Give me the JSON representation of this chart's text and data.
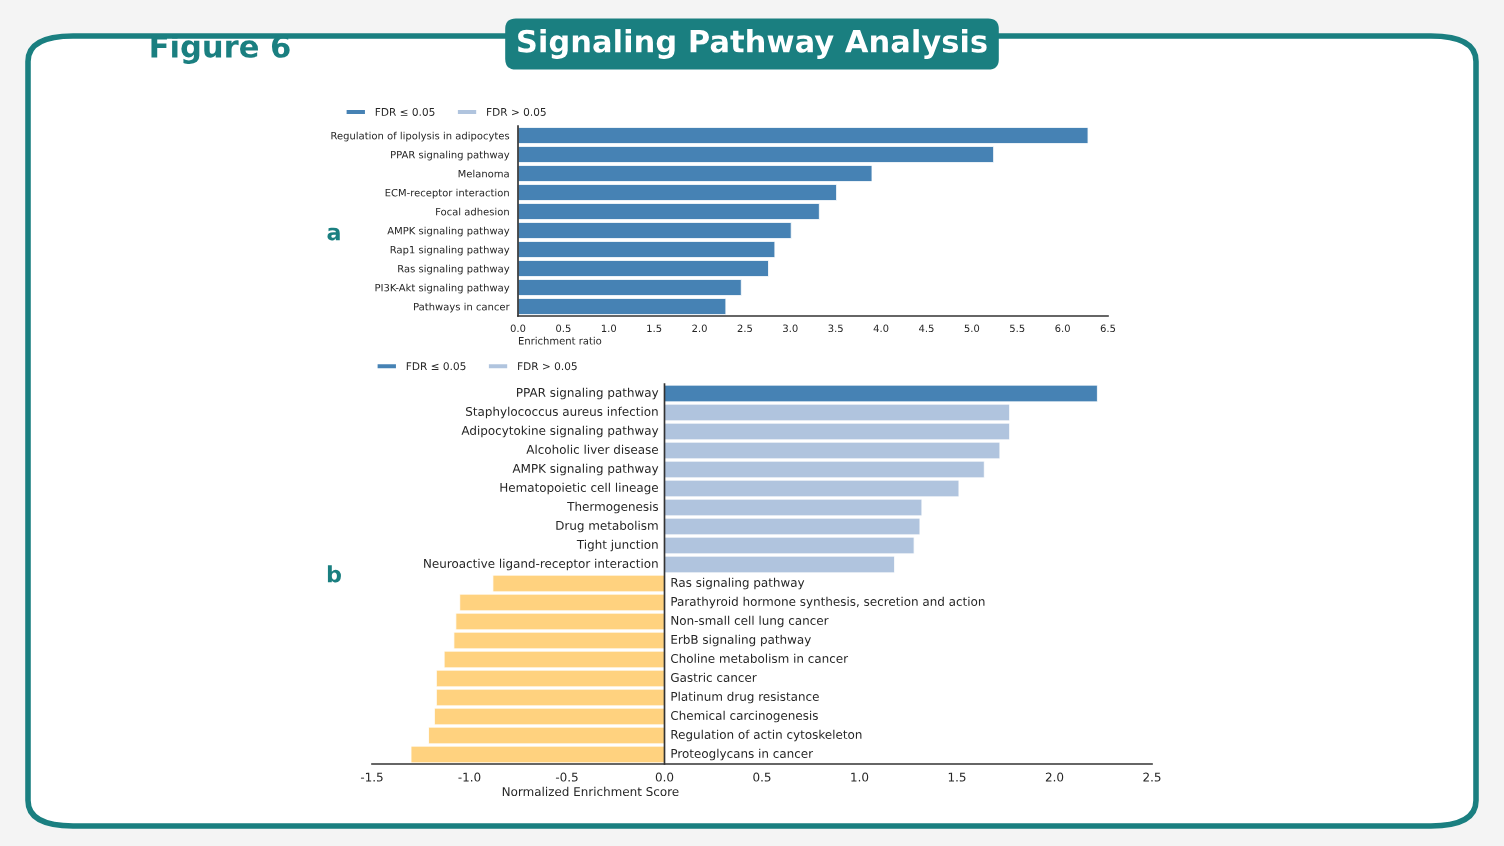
{
  "chart_data": [
    {
      "type": "bar",
      "orientation": "horizontal",
      "title": "Signaling Pathway Analysis",
      "annotations": [
        "Figure 6",
        "a"
      ],
      "xlabel": "Enrichment ratio",
      "categories": [
        "Regulation of lipolysis in adipocytes",
        "PPAR signaling pathway",
        "Melanoma",
        "ECM-receptor interaction",
        "Focal adhesion",
        "AMPK signaling pathway",
        "Rap1 signaling pathway",
        "Ras signaling pathway",
        "PI3K-Akt signaling pathway",
        "Pathways in cancer"
      ],
      "series": [
        {
          "name": "FDR ≤ 0.05",
          "color": "#4682b4",
          "values": [
            6.28,
            5.24,
            3.9,
            3.51,
            3.32,
            3.01,
            2.83,
            2.76,
            2.46,
            2.29
          ]
        },
        {
          "name": "FDR > 0.05",
          "color": "#b0c4de",
          "values": [
            null,
            null,
            null,
            null,
            null,
            null,
            null,
            null,
            null,
            null
          ]
        }
      ],
      "xlim": [
        0,
        6.5
      ],
      "xticks": [
        {
          "value": 0,
          "label": "0.0"
        },
        0.5,
        {
          "value": 1,
          "label": "1.0"
        },
        1.5,
        {
          "value": 2,
          "label": "2.0"
        },
        2.5,
        {
          "value": 3,
          "label": "3.0"
        },
        3.5,
        {
          "value": 4,
          "label": "4.0"
        },
        4.5,
        {
          "value": 5,
          "label": "5.0"
        },
        5.5,
        {
          "value": 6,
          "label": "6.0"
        },
        6.5
      ],
      "legend": "top left",
      "grid": false
    },
    {
      "type": "bar",
      "orientation": "horizontal",
      "annotations": [
        "b"
      ],
      "xlabel": "Normalized Enrichment Score",
      "categories": [
        "PPAR signaling pathway",
        "Staphylococcus aureus infection",
        "Adipocytokine signaling pathway",
        "Alcoholic liver disease",
        "AMPK signaling pathway",
        "Hematopoietic cell lineage",
        "Thermogenesis",
        "Drug metabolism",
        "Tight junction",
        "Neuroactive ligand-receptor interaction",
        "Ras signaling pathway",
        "Parathyroid hormone synthesis, secretion and action",
        "Non-small cell lung cancer",
        "ErbB signaling pathway",
        "Choline metabolism in cancer",
        "Gastric cancer",
        "Platinum drug resistance",
        "Chemical carcinogenesis",
        "Regulation of actin cytoskeleton",
        "Proteoglycans in cancer"
      ],
      "series": [
        {
          "name": "FDR ≤ 0.05",
          "color": "#4682b4",
          "values": [
            2.22,
            null,
            null,
            null,
            null,
            null,
            null,
            null,
            null,
            null,
            null,
            null,
            null,
            null,
            null,
            null,
            null,
            null,
            null,
            null
          ]
        },
        {
          "name": "FDR > 0.05",
          "color": "#b0c4de",
          "colors": [
            "#b0c4de",
            "#b0c4de",
            "#b0c4de",
            "#b0c4de",
            "#b0c4de",
            "#b0c4de",
            "#b0c4de",
            "#b0c4de",
            "#b0c4de",
            "#b0c4de",
            "#ffd27f",
            "#ffd27f",
            "#ffd27f",
            "#ffd27f",
            "#ffd27f",
            "#ffd27f",
            "#ffd27f",
            "#ffd27f",
            "#ffd27f",
            "#ffd27f"
          ],
          "values": [
            null,
            1.77,
            1.77,
            1.72,
            1.64,
            1.51,
            1.32,
            1.31,
            1.28,
            1.18,
            -0.88,
            -1.05,
            -1.07,
            -1.08,
            -1.13,
            -1.17,
            -1.17,
            -1.18,
            -1.21,
            -1.3
          ]
        }
      ],
      "xlim": [
        -1.5,
        2.5
      ],
      "xticks": [
        {
          "value": -1.5,
          "label": "-1.5"
        },
        {
          "value": -1,
          "label": "-1.0"
        },
        {
          "value": -0.5,
          "label": "-0.5"
        },
        {
          "value": 0,
          "label": "0.0"
        },
        0.5,
        {
          "value": 1,
          "label": "1.0"
        },
        1.5,
        {
          "value": 2,
          "label": "2.0"
        },
        2.5
      ],
      "legend": "top left",
      "grid": false
    }
  ]
}
